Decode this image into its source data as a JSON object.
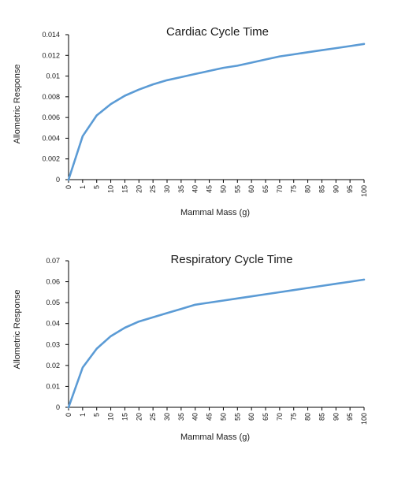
{
  "chart_data": [
    {
      "type": "line",
      "title": "Cardiac Cycle Time",
      "xlabel": "Mammal Mass (g)",
      "ylabel": "Allometric Response",
      "x": [
        "0",
        "1",
        "5",
        "10",
        "15",
        "20",
        "25",
        "30",
        "35",
        "40",
        "45",
        "50",
        "55",
        "60",
        "65",
        "70",
        "75",
        "80",
        "85",
        "90",
        "95",
        "100"
      ],
      "ylim": [
        0,
        0.014
      ],
      "yticks": [
        "0",
        "0.002",
        "0.004",
        "0.006",
        "0.008",
        "0.01",
        "0.012",
        "0.014"
      ],
      "grid": false,
      "series": [
        {
          "values": [
            0,
            0.0042,
            0.0062,
            0.0073,
            0.0081,
            0.0087,
            0.0092,
            0.0096,
            0.0099,
            0.0102,
            0.0105,
            0.0108,
            0.011,
            0.0113,
            0.0116,
            0.0119,
            0.0121,
            0.0123,
            0.0125,
            0.0127,
            0.0129,
            0.0131
          ],
          "color": "#5b9bd5"
        }
      ]
    },
    {
      "type": "line",
      "title": "Respiratory Cycle Time",
      "xlabel": "Mammal Mass (g)",
      "ylabel": "Allometric Response",
      "x": [
        "0",
        "1",
        "5",
        "10",
        "15",
        "20",
        "25",
        "30",
        "35",
        "40",
        "45",
        "50",
        "55",
        "60",
        "65",
        "70",
        "75",
        "80",
        "85",
        "90",
        "95",
        "100"
      ],
      "ylim": [
        0,
        0.07
      ],
      "yticks": [
        "0",
        "0.01",
        "0.02",
        "0.03",
        "0.04",
        "0.05",
        "0.06",
        "0.07"
      ],
      "grid": false,
      "series": [
        {
          "values": [
            0,
            0.019,
            0.028,
            0.034,
            0.038,
            0.041,
            0.043,
            0.045,
            0.047,
            0.049,
            0.05,
            0.051,
            0.052,
            0.053,
            0.054,
            0.055,
            0.056,
            0.057,
            0.058,
            0.059,
            0.06,
            0.061
          ],
          "color": "#5b9bd5"
        }
      ]
    }
  ]
}
